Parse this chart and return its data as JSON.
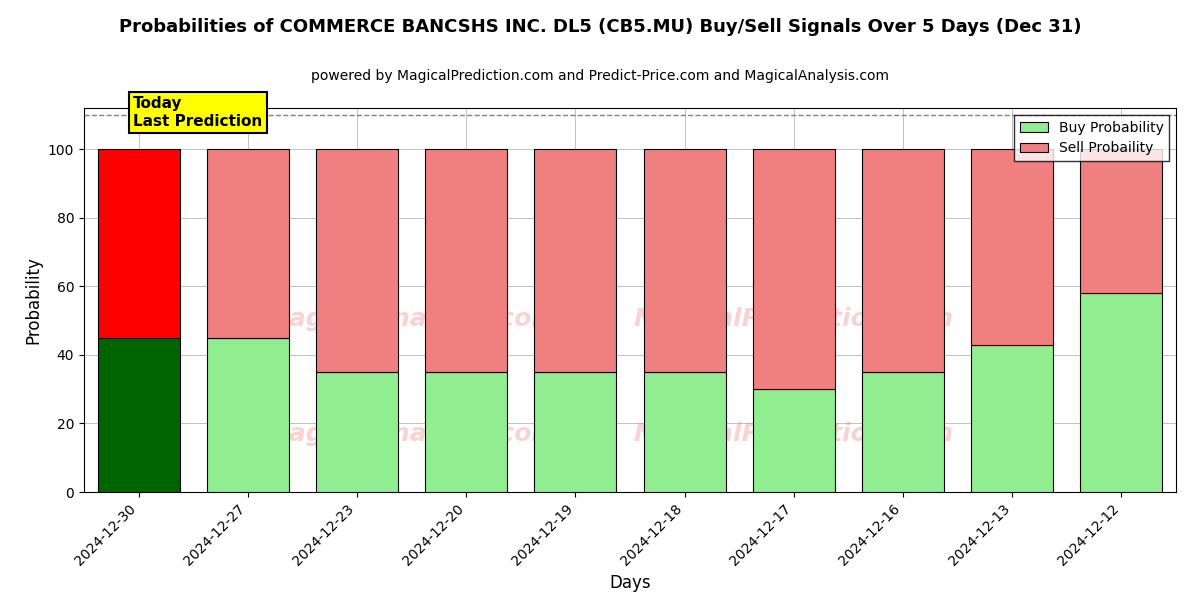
{
  "title": "Probabilities of COMMERCE BANCSHS INC. DL5 (CB5.MU) Buy/Sell Signals Over 5 Days (Dec 31)",
  "subtitle": "powered by MagicalPrediction.com and Predict-Price.com and MagicalAnalysis.com",
  "xlabel": "Days",
  "ylabel": "Probability",
  "categories": [
    "2024-12-30",
    "2024-12-27",
    "2024-12-23",
    "2024-12-20",
    "2024-12-19",
    "2024-12-18",
    "2024-12-17",
    "2024-12-16",
    "2024-12-13",
    "2024-12-12"
  ],
  "buy_values": [
    45,
    45,
    35,
    35,
    35,
    35,
    30,
    35,
    43,
    58
  ],
  "sell_values": [
    55,
    55,
    65,
    65,
    65,
    65,
    70,
    65,
    57,
    42
  ],
  "today_buy_color": "#006400",
  "today_sell_color": "#ff0000",
  "buy_color": "#90EE90",
  "sell_color": "#F08080",
  "bar_edgecolor": "#000000",
  "ylim": [
    0,
    112
  ],
  "yticks": [
    0,
    20,
    40,
    60,
    80,
    100
  ],
  "dashed_line_y": 110,
  "watermark_lines": [
    "MagicalAnalysis.com",
    "MagicalPrediction.com"
  ],
  "annotation_text": "Today\nLast Prediction",
  "annotation_bg": "#ffff00",
  "legend_buy_label": "Buy Probability",
  "legend_sell_label": "Sell Probaility",
  "title_fontsize": 13,
  "subtitle_fontsize": 10,
  "axis_label_fontsize": 12,
  "tick_fontsize": 10,
  "background_color": "#ffffff",
  "grid_color": "#aaaaaa"
}
